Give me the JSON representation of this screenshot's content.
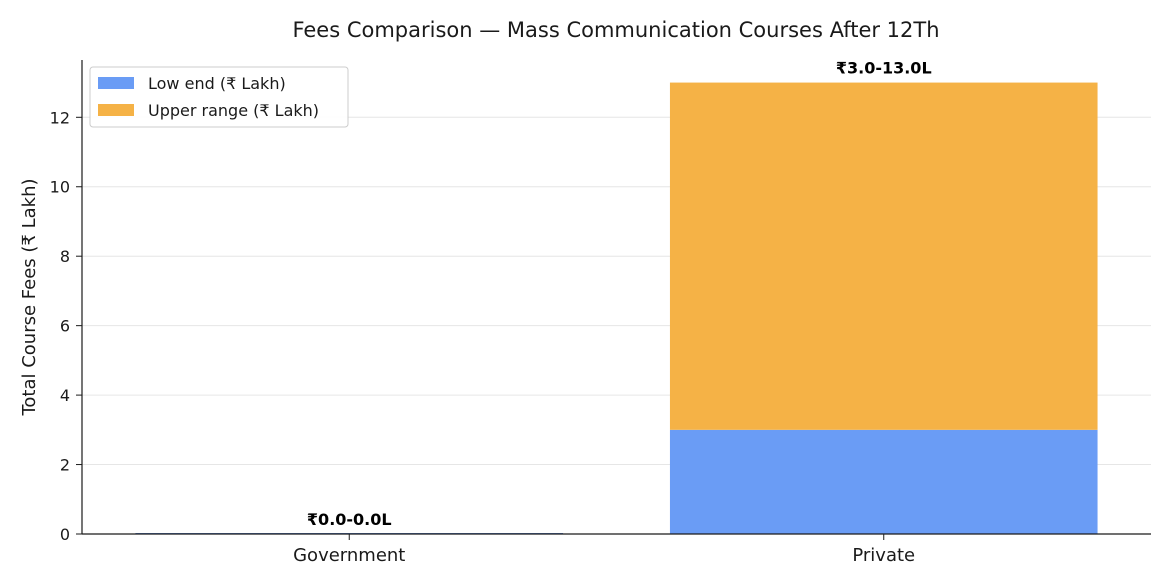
{
  "chart_data": {
    "type": "bar",
    "stacked": true,
    "title": "Fees Comparison — Mass Communication Courses After 12Th",
    "xlabel": "",
    "ylabel": "Total Course Fees (₹ Lakh)",
    "categories": [
      "Government",
      "Private"
    ],
    "series": [
      {
        "name": "Low end (₹ Lakh)",
        "values": [
          0.0,
          3.0
        ],
        "color": "#6a9cf5"
      },
      {
        "name": "Upper range (₹ Lakh)",
        "values": [
          0.0,
          10.0
        ],
        "color": "#f5b246"
      }
    ],
    "data_labels": [
      "₹0.0-0.0L",
      "₹3.0-13.0L"
    ],
    "ylim": [
      0,
      13.65
    ],
    "yticks": [
      0,
      2,
      4,
      6,
      8,
      10,
      12
    ],
    "grid": "horizontal",
    "legend_position": "top-left"
  }
}
